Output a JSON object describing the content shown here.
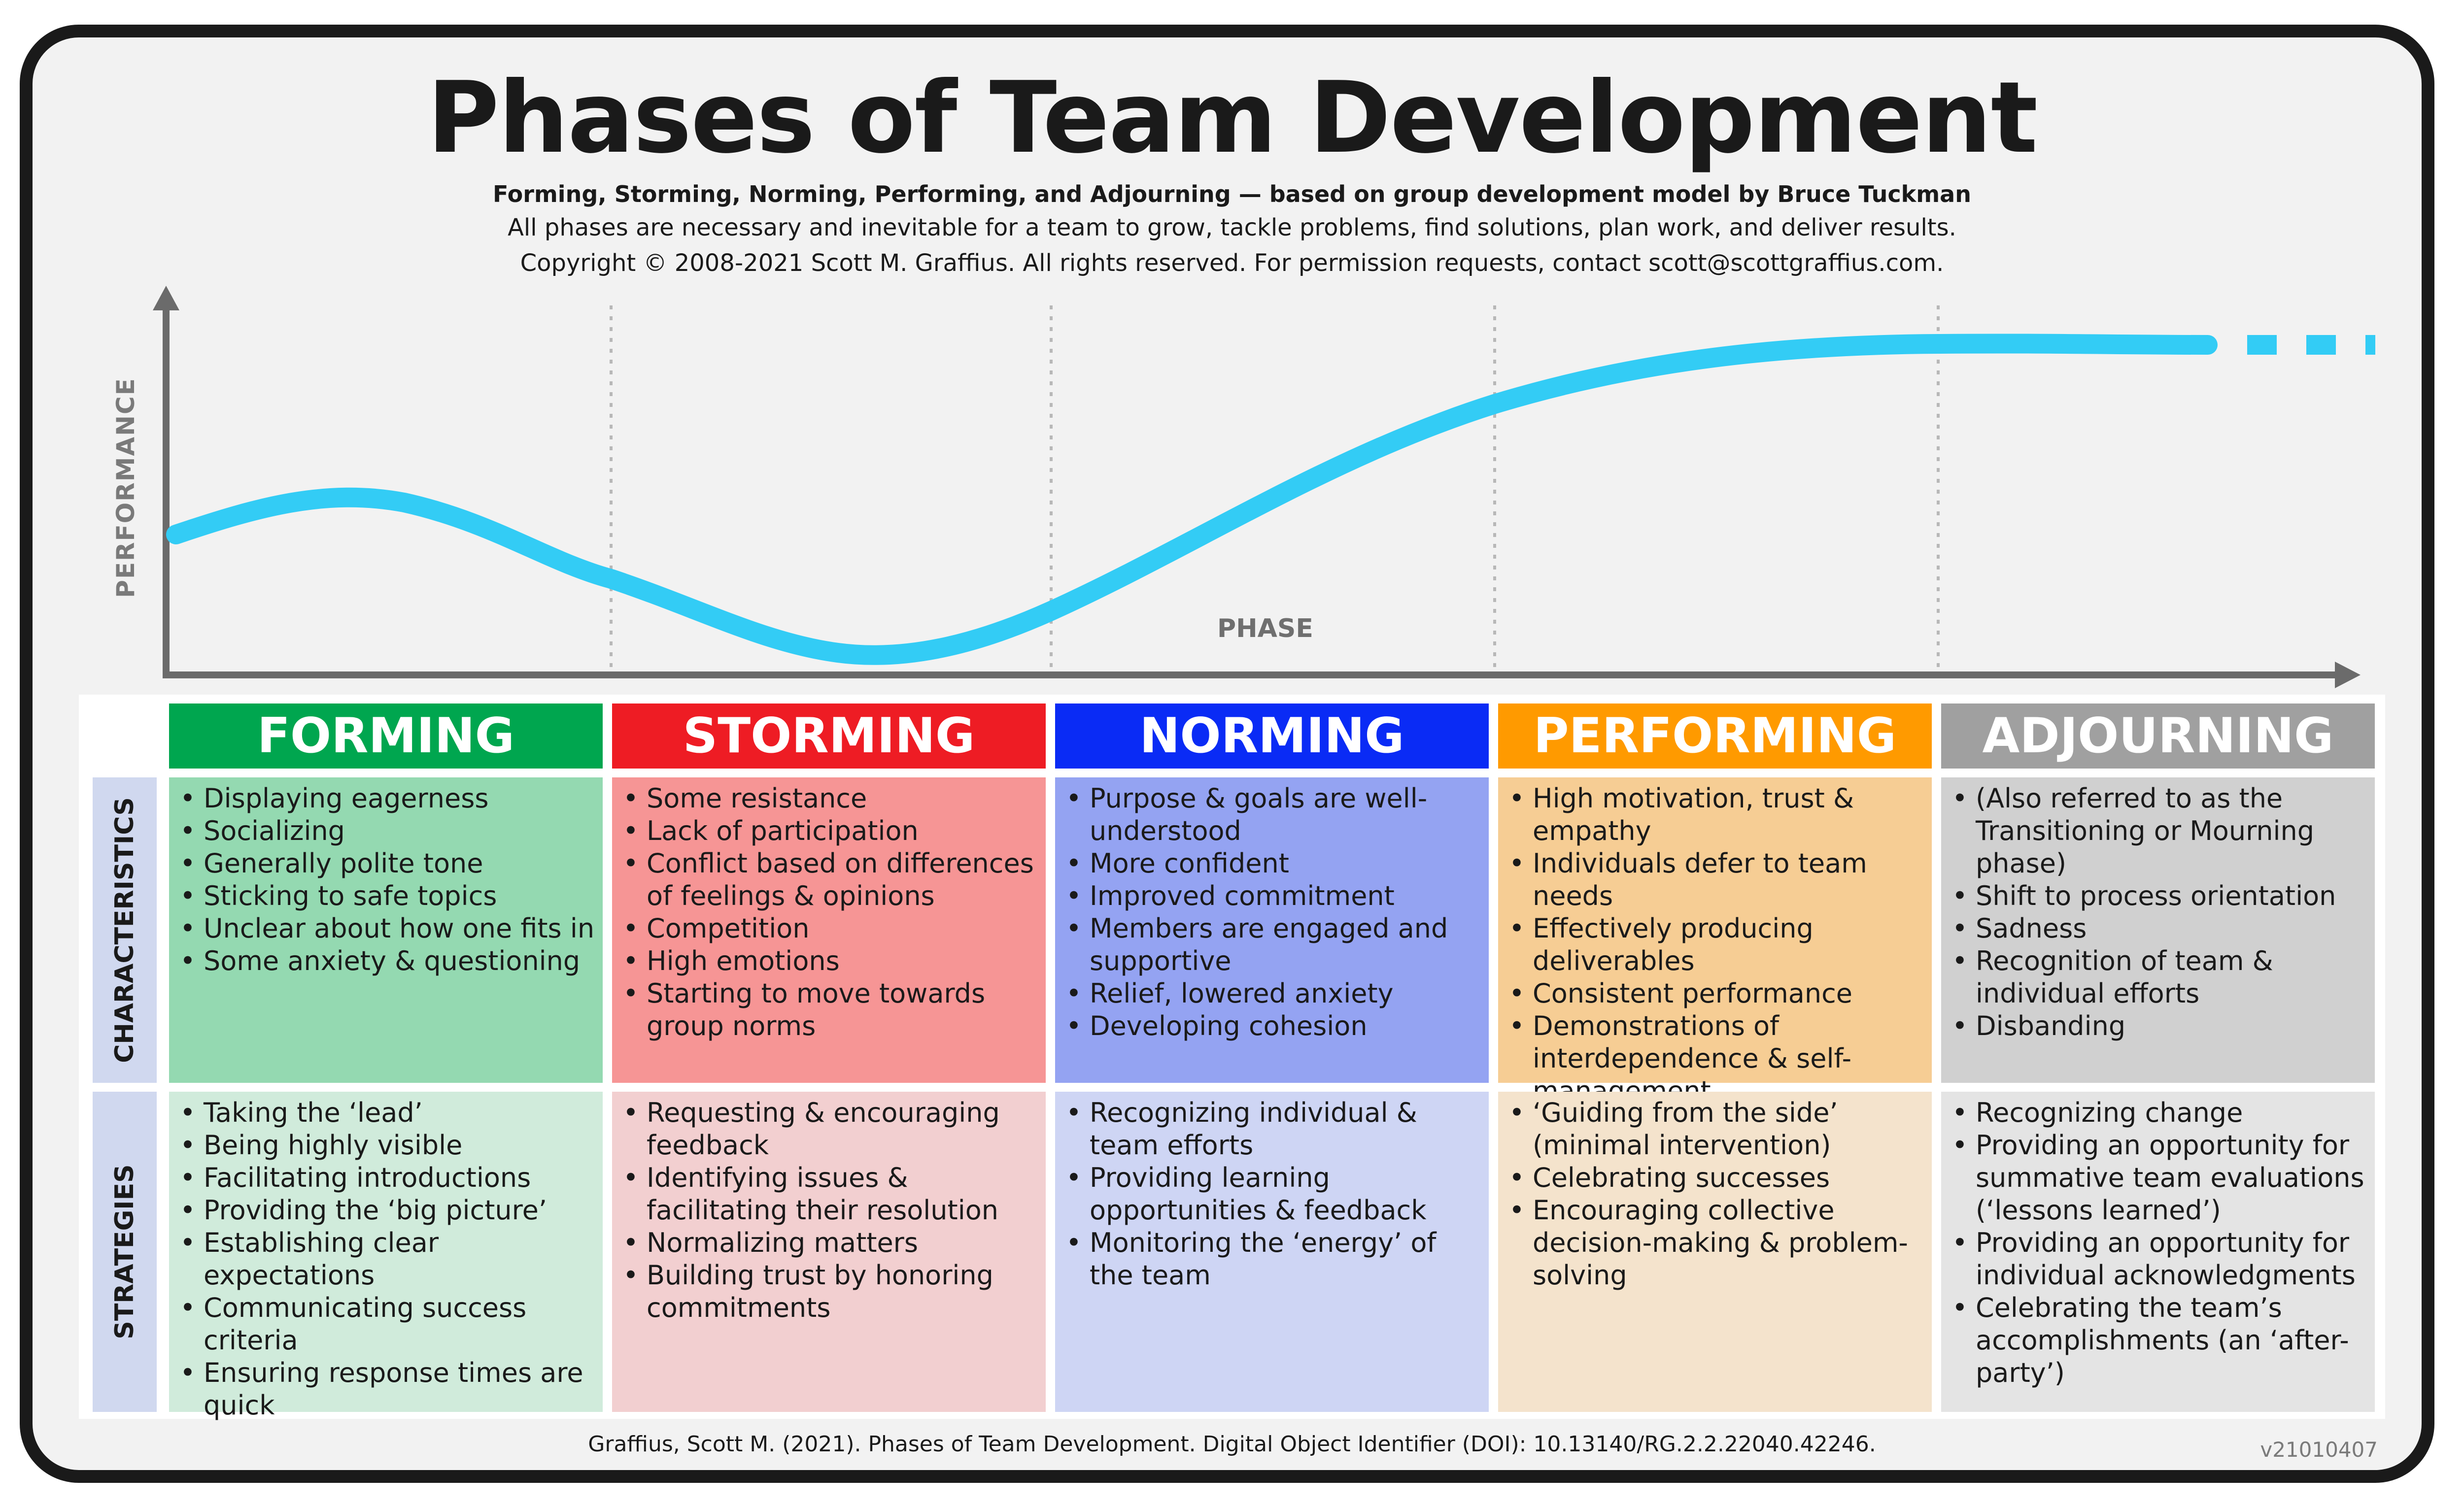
{
  "title": "Phases of Team Development",
  "subtitle": "Forming, Storming, Norming, Performing, and Adjourning — based on group development model by Bruce Tuckman",
  "description": "All phases are necessary and inevitable for a team to grow, tackle problems, find solutions, plan work, and deliver results.",
  "copyright": "Copyright © 2008-2021 Scott M. Graffius. All rights reserved. For permission requests, contact scott@scottgraffius.com.",
  "axis": {
    "y_label": "PERFORMANCE",
    "x_label": "PHASE"
  },
  "colors": {
    "curve": "#33ccf5",
    "axis": "#6b6b6b",
    "forming": "#00a64f",
    "storming": "#ee1c24",
    "norming": "#0a2bf5",
    "performing": "#ff9a00",
    "adjourning": "#a0a0a0"
  },
  "row_labels": {
    "characteristics": "CHARACTERISTICS",
    "strategies": "STRATEGIES"
  },
  "phases": [
    {
      "name": "FORMING",
      "characteristics": [
        "Displaying eagerness",
        "Socializing",
        "Generally polite tone",
        "Sticking to safe topics",
        "Unclear about how one fits in",
        "Some anxiety & questioning"
      ],
      "strategies": [
        "Taking the ‘lead’",
        "Being highly visible",
        "Facilitating introductions",
        "Providing the ‘big picture’",
        "Establishing clear expectations",
        "Communicating success criteria",
        "Ensuring response times are quick"
      ]
    },
    {
      "name": "STORMING",
      "characteristics": [
        "Some resistance",
        "Lack of participation",
        "Conflict based on differences of feelings & opinions",
        "Competition",
        "High emotions",
        "Starting to move towards group norms"
      ],
      "strategies": [
        "Requesting & encouraging feedback",
        "Identifying issues & facilitating their resolution",
        "Normalizing matters",
        "Building trust by honoring commitments"
      ]
    },
    {
      "name": "NORMING",
      "characteristics": [
        "Purpose & goals are well-understood",
        "More confident",
        "Improved commitment",
        "Members are engaged and supportive",
        "Relief, lowered anxiety",
        "Developing cohesion"
      ],
      "strategies": [
        "Recognizing individual & team efforts",
        "Providing learning opportunities & feedback",
        "Monitoring the ‘energy’ of the team"
      ]
    },
    {
      "name": "PERFORMING",
      "characteristics": [
        "High motivation, trust & empathy",
        "Individuals defer to team needs",
        "Effectively producing deliverables",
        "Consistent performance",
        "Demonstrations of interdependence & self-management"
      ],
      "strategies": [
        "‘Guiding from the side’ (minimal intervention)",
        "Celebrating successes",
        "Encouraging collective decision-making & problem-solving"
      ]
    },
    {
      "name": "ADJOURNING",
      "characteristics": [
        "(Also referred to as the Transitioning or Mourning phase)",
        "Shift to process orientation",
        "Sadness",
        "Recognition of team & individual efforts",
        "Disbanding"
      ],
      "strategies": [
        "Recognizing change",
        "Providing an opportunity for summative team evaluations (‘lessons learned’)",
        "Providing an opportunity for individual acknowledgments",
        "Celebrating the team’s accomplishments (an ‘after-party’)"
      ]
    }
  ],
  "citation": "Graffius, Scott M. (2021). Phases of Team Development. Digital Object Identifier (DOI): 10.13140/RG.2.2.22040.42246.",
  "version": "v21010407"
}
